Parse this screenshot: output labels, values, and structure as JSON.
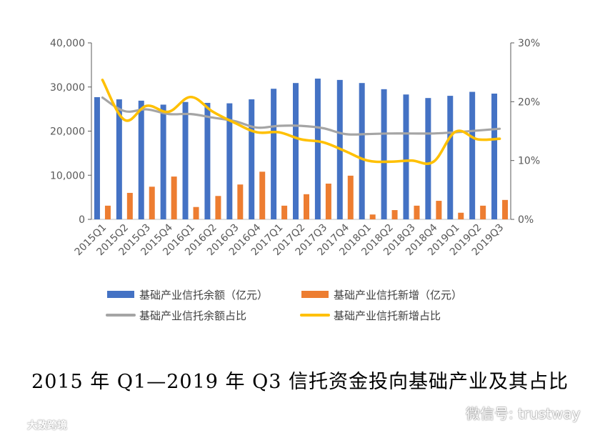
{
  "chart_data": {
    "type": "bar",
    "categories": [
      "2015Q1",
      "2015Q2",
      "2015Q3",
      "2015Q4",
      "2016Q1",
      "2016Q2",
      "2016Q3",
      "2016Q4",
      "2017Q1",
      "2017Q2",
      "2017Q3",
      "2017Q4",
      "2018Q1",
      "2018Q2",
      "2018Q3",
      "2018Q4",
      "2019Q1",
      "2019Q2",
      "2019Q3"
    ],
    "series": [
      {
        "name": "基础产业信托余额（亿元）",
        "type": "bar",
        "axis": "left",
        "color": "#4472C4",
        "values": [
          27700,
          27200,
          26900,
          26000,
          26600,
          26400,
          26300,
          27200,
          29600,
          30900,
          31900,
          31600,
          30900,
          29500,
          28300,
          27500,
          28000,
          28900,
          28500
        ]
      },
      {
        "name": "基础产业信托新增（亿元）",
        "type": "bar",
        "axis": "left",
        "color": "#ED7D31",
        "values": [
          3100,
          6000,
          7400,
          9700,
          2800,
          5300,
          7900,
          10800,
          3100,
          5700,
          8100,
          9900,
          1100,
          2100,
          3100,
          4200,
          1500,
          3100,
          4400
        ]
      },
      {
        "name": "基础产业信托余额占比",
        "type": "line",
        "axis": "right",
        "color": "#A5A5A5",
        "values": [
          20.7,
          18.4,
          18.7,
          17.9,
          17.9,
          17.3,
          16.7,
          15.6,
          15.9,
          15.9,
          15.5,
          14.5,
          14.5,
          14.6,
          14.6,
          14.6,
          14.8,
          15.1,
          15.4
        ]
      },
      {
        "name": "基础产业信托新增占比",
        "type": "line",
        "axis": "right",
        "color": "#FFC000",
        "values": [
          23.7,
          16.9,
          19.3,
          18.3,
          20.8,
          18.3,
          16.4,
          14.8,
          14.8,
          13.6,
          13.1,
          11.6,
          10.0,
          9.8,
          10.0,
          9.8,
          14.9,
          13.6,
          13.7
        ]
      }
    ],
    "y_left": {
      "range": [
        0,
        40000
      ],
      "ticks": [
        "0",
        "10,000",
        "20,000",
        "30,000",
        "40,000"
      ],
      "tick_values": [
        0,
        10000,
        20000,
        30000,
        40000
      ]
    },
    "y_right": {
      "range": [
        0,
        30
      ],
      "ticks": [
        "0%",
        "10%",
        "20%",
        "30%"
      ],
      "tick_values": [
        0,
        10,
        20,
        30
      ]
    },
    "title": "",
    "xlabel": "",
    "ylabel": "",
    "legend": "bottom",
    "grid": false
  },
  "caption": "2015 年 Q1—2019 年 Q3 信托资金投向基础产业及其占比",
  "watermarks": {
    "left": "大数跨境",
    "right": "微信号: trustway"
  }
}
